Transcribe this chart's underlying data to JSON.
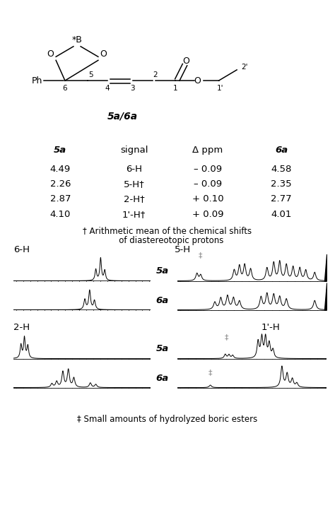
{
  "title": "5a/6a",
  "table_headers": [
    "5a",
    "signal",
    "Δ ppm",
    "6a"
  ],
  "table_rows": [
    [
      "4.49",
      "6-H",
      "– 0.09",
      "4.58"
    ],
    [
      "2.26",
      "5-H†",
      "– 0.09",
      "2.35"
    ],
    [
      "2.87",
      "2-H†",
      "+ 0.10",
      "2.77"
    ],
    [
      "4.10",
      "1'-H†",
      "+ 0.09",
      "4.01"
    ]
  ],
  "footnote1": "† Arithmetic mean of the chemical shifts",
  "footnote1b": "   of diastereotopic protons",
  "footnote2": "‡ Small amounts of hydrolyzed boric esters",
  "background_color": "#ffffff"
}
